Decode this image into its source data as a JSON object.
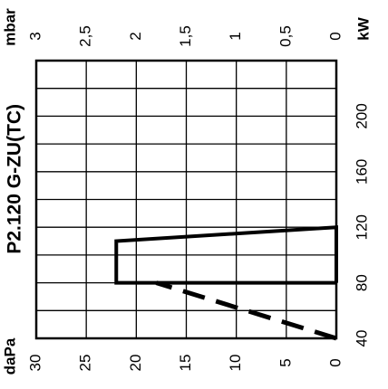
{
  "chart_data": {
    "type": "line",
    "title": "P2.120 G-ZU(TC)",
    "orientation": "rotated-90-ccw",
    "x_axis": {
      "label": "kW",
      "range": [
        40,
        240
      ],
      "ticks": [
        40,
        80,
        120,
        160,
        200
      ],
      "tick_labels": [
        "40",
        "80",
        "120",
        "160",
        "200"
      ],
      "grid_step": 20,
      "grid": true
    },
    "y_axis_primary": {
      "label": "daPa",
      "range": [
        0,
        30
      ],
      "ticks": [
        0,
        5,
        10,
        15,
        20,
        25,
        30
      ],
      "tick_labels": [
        "0",
        "5",
        "10",
        "15",
        "20",
        "25",
        "30"
      ],
      "grid": true
    },
    "y_axis_secondary": {
      "label": "mbar",
      "range": [
        0,
        3
      ],
      "ticks": [
        0,
        0.5,
        1,
        1.5,
        2,
        2.5,
        3
      ],
      "tick_labels": [
        "0",
        "0,5",
        "1",
        "1,5",
        "2",
        "2,5",
        "3"
      ]
    },
    "series": [
      {
        "style": "solid",
        "x": [
          80,
          80,
          110,
          120,
          120,
          80
        ],
        "y": [
          0,
          22,
          22,
          0,
          0,
          0
        ]
      },
      {
        "style": "dashed",
        "x": [
          40,
          80
        ],
        "y": [
          0,
          18
        ]
      }
    ]
  }
}
